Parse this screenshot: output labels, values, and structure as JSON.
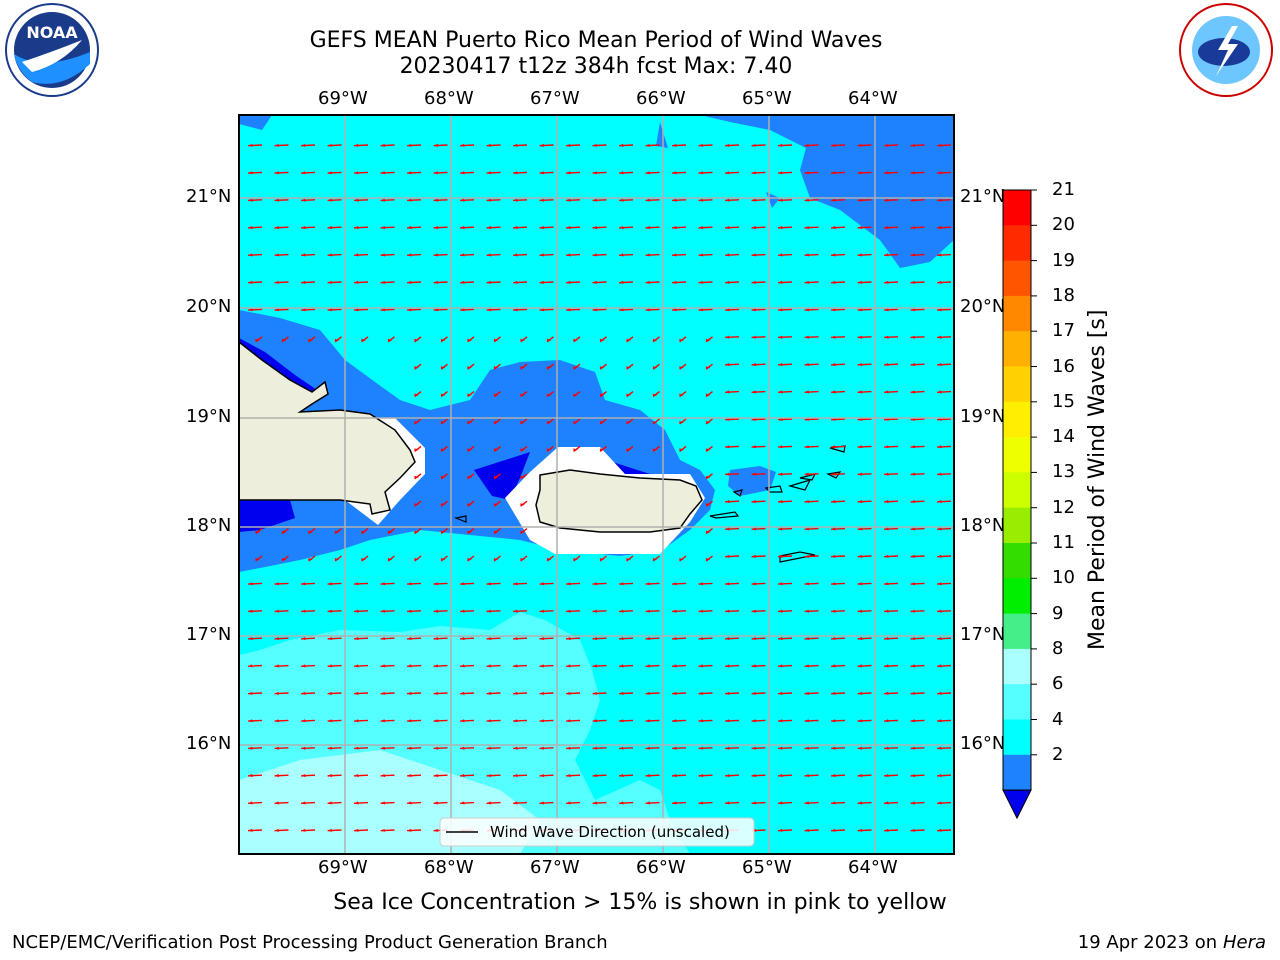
{
  "header": {
    "title_line1": "GEFS MEAN Puerto Rico Mean Period of Wind Waves",
    "title_line2": "20230417 t12z 384h fcst   Max: 7.40"
  },
  "logos": {
    "left": {
      "text": "NOAA",
      "icon": "noaa-logo-icon"
    },
    "right": {
      "icon": "nws-logo-icon"
    }
  },
  "map": {
    "lon_labels": [
      "69°W",
      "68°W",
      "67°W",
      "66°W",
      "65°W",
      "64°W"
    ],
    "lat_labels": [
      "21°N",
      "20°N",
      "19°N",
      "18°N",
      "17°N",
      "16°N"
    ],
    "legend_label": "Wind Wave Direction (unscaled)",
    "arrow_color": "#ff0000",
    "land_color": "#eeeedd"
  },
  "colorbar": {
    "label": "Mean Period of Wind Waves [s]",
    "ticks": [
      "21",
      "20",
      "19",
      "18",
      "17",
      "16",
      "15",
      "14",
      "13",
      "12",
      "11",
      "10",
      "9",
      "8",
      "6",
      "4",
      "2"
    ],
    "colors": [
      "#ff0000",
      "#ff2200",
      "#ff5500",
      "#ff8800",
      "#ffaa00",
      "#ffcc00",
      "#ffee00",
      "#eeff00",
      "#ccff00",
      "#aaee00",
      "#55dd00",
      "#00ee00",
      "#44ee88",
      "#aaffff",
      "#55ffff",
      "#00ffff",
      "#00eeff",
      "#1177ff"
    ],
    "under_color": "#0000ee"
  },
  "note": "Sea Ice Concentration > 15% is shown in pink to yellow",
  "footer": {
    "left": "NCEP/EMC/Verification Post Processing Product Generation Branch",
    "right_date": "19 Apr 2023 on ",
    "right_host": "Hera"
  }
}
